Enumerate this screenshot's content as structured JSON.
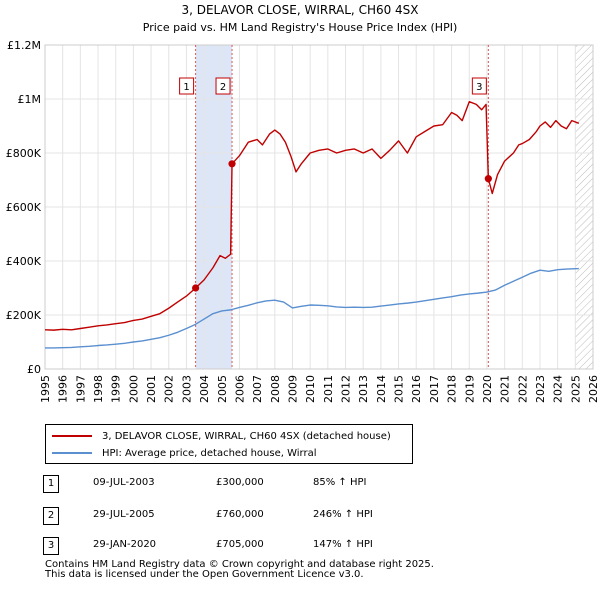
{
  "chart_data": {
    "type": "line",
    "title": "3, DELAVOR CLOSE, WIRRAL, CH60 4SX",
    "subtitle": "Price paid vs. HM Land Registry's House Price Index (HPI)",
    "xlim": [
      1995,
      2026
    ],
    "ylim": [
      0,
      1200000
    ],
    "x_ticks": [
      1995,
      1996,
      1997,
      1998,
      1999,
      2000,
      2001,
      2002,
      2003,
      2004,
      2005,
      2006,
      2007,
      2008,
      2009,
      2010,
      2011,
      2012,
      2013,
      2014,
      2015,
      2016,
      2017,
      2018,
      2019,
      2020,
      2021,
      2022,
      2023,
      2024,
      2025,
      2026
    ],
    "y_ticks": [
      {
        "value": 0,
        "label": "£0"
      },
      {
        "value": 200000,
        "label": "£200K"
      },
      {
        "value": 400000,
        "label": "£400K"
      },
      {
        "value": 600000,
        "label": "£600K"
      },
      {
        "value": 800000,
        "label": "£800K"
      },
      {
        "value": 1000000,
        "label": "£1M"
      },
      {
        "value": 1200000,
        "label": "£1.2M"
      }
    ],
    "grid": true,
    "shaded_regions": [
      {
        "from": 2003.52,
        "to": 2005.58,
        "color": "#dde6f7"
      },
      {
        "from": 2025.0,
        "to": 2026.0,
        "hatched": true
      }
    ],
    "series": [
      {
        "name": "3, DELAVOR CLOSE, WIRRAL, CH60 4SX (detached house)",
        "color": "#c00000",
        "points": [
          [
            1995.0,
            145000
          ],
          [
            1995.5,
            144000
          ],
          [
            1996.0,
            147000
          ],
          [
            1996.5,
            145000
          ],
          [
            1997.0,
            150000
          ],
          [
            1997.5,
            155000
          ],
          [
            1998.0,
            160000
          ],
          [
            1998.5,
            163000
          ],
          [
            1999.0,
            168000
          ],
          [
            1999.5,
            172000
          ],
          [
            2000.0,
            180000
          ],
          [
            2000.5,
            185000
          ],
          [
            2001.0,
            195000
          ],
          [
            2001.5,
            205000
          ],
          [
            2002.0,
            225000
          ],
          [
            2002.5,
            248000
          ],
          [
            2003.0,
            270000
          ],
          [
            2003.52,
            300000
          ],
          [
            2004.0,
            330000
          ],
          [
            2004.5,
            375000
          ],
          [
            2004.9,
            420000
          ],
          [
            2005.2,
            410000
          ],
          [
            2005.5,
            425000
          ],
          [
            2005.58,
            760000
          ],
          [
            2006.0,
            790000
          ],
          [
            2006.5,
            840000
          ],
          [
            2007.0,
            850000
          ],
          [
            2007.3,
            830000
          ],
          [
            2007.7,
            870000
          ],
          [
            2008.0,
            885000
          ],
          [
            2008.3,
            870000
          ],
          [
            2008.6,
            840000
          ],
          [
            2008.9,
            790000
          ],
          [
            2009.2,
            730000
          ],
          [
            2009.5,
            760000
          ],
          [
            2010.0,
            800000
          ],
          [
            2010.5,
            810000
          ],
          [
            2011.0,
            815000
          ],
          [
            2011.5,
            800000
          ],
          [
            2012.0,
            810000
          ],
          [
            2012.5,
            815000
          ],
          [
            2013.0,
            800000
          ],
          [
            2013.5,
            815000
          ],
          [
            2014.0,
            780000
          ],
          [
            2014.5,
            810000
          ],
          [
            2015.0,
            845000
          ],
          [
            2015.5,
            800000
          ],
          [
            2016.0,
            860000
          ],
          [
            2016.5,
            880000
          ],
          [
            2017.0,
            900000
          ],
          [
            2017.5,
            905000
          ],
          [
            2018.0,
            950000
          ],
          [
            2018.3,
            940000
          ],
          [
            2018.6,
            920000
          ],
          [
            2019.0,
            990000
          ],
          [
            2019.4,
            980000
          ],
          [
            2019.7,
            960000
          ],
          [
            2019.95,
            980000
          ],
          [
            2020.08,
            705000
          ],
          [
            2020.3,
            650000
          ],
          [
            2020.6,
            720000
          ],
          [
            2021.0,
            770000
          ],
          [
            2021.5,
            800000
          ],
          [
            2021.8,
            830000
          ],
          [
            2022.0,
            835000
          ],
          [
            2022.4,
            850000
          ],
          [
            2022.8,
            880000
          ],
          [
            2023.0,
            900000
          ],
          [
            2023.3,
            915000
          ],
          [
            2023.6,
            895000
          ],
          [
            2023.9,
            920000
          ],
          [
            2024.2,
            900000
          ],
          [
            2024.5,
            890000
          ],
          [
            2024.8,
            920000
          ],
          [
            2025.2,
            910000
          ]
        ]
      },
      {
        "name": "HPI: Average price, detached house, Wirral",
        "color": "#5a8fd0",
        "points": [
          [
            1995.0,
            78000
          ],
          [
            1995.5,
            78000
          ],
          [
            1996.0,
            79000
          ],
          [
            1996.5,
            80000
          ],
          [
            1997.0,
            82000
          ],
          [
            1997.5,
            84000
          ],
          [
            1998.0,
            87000
          ],
          [
            1998.5,
            89000
          ],
          [
            1999.0,
            92000
          ],
          [
            1999.5,
            95000
          ],
          [
            2000.0,
            100000
          ],
          [
            2000.5,
            104000
          ],
          [
            2001.0,
            110000
          ],
          [
            2001.5,
            116000
          ],
          [
            2002.0,
            125000
          ],
          [
            2002.5,
            136000
          ],
          [
            2003.0,
            150000
          ],
          [
            2003.5,
            165000
          ],
          [
            2004.0,
            185000
          ],
          [
            2004.5,
            205000
          ],
          [
            2005.0,
            215000
          ],
          [
            2005.5,
            219000
          ],
          [
            2006.0,
            228000
          ],
          [
            2006.5,
            236000
          ],
          [
            2007.0,
            245000
          ],
          [
            2007.5,
            252000
          ],
          [
            2008.0,
            255000
          ],
          [
            2008.5,
            248000
          ],
          [
            2009.0,
            226000
          ],
          [
            2009.5,
            232000
          ],
          [
            2010.0,
            237000
          ],
          [
            2010.5,
            236000
          ],
          [
            2011.0,
            234000
          ],
          [
            2011.5,
            230000
          ],
          [
            2012.0,
            228000
          ],
          [
            2012.5,
            229000
          ],
          [
            2013.0,
            228000
          ],
          [
            2013.5,
            229000
          ],
          [
            2014.0,
            233000
          ],
          [
            2014.5,
            237000
          ],
          [
            2015.0,
            241000
          ],
          [
            2015.5,
            244000
          ],
          [
            2016.0,
            248000
          ],
          [
            2016.5,
            253000
          ],
          [
            2017.0,
            258000
          ],
          [
            2017.5,
            263000
          ],
          [
            2018.0,
            268000
          ],
          [
            2018.5,
            274000
          ],
          [
            2019.0,
            278000
          ],
          [
            2019.5,
            281000
          ],
          [
            2020.0,
            285000
          ],
          [
            2020.5,
            293000
          ],
          [
            2021.0,
            310000
          ],
          [
            2021.5,
            325000
          ],
          [
            2022.0,
            340000
          ],
          [
            2022.5,
            355000
          ],
          [
            2023.0,
            366000
          ],
          [
            2023.5,
            362000
          ],
          [
            2024.0,
            368000
          ],
          [
            2024.5,
            370000
          ],
          [
            2025.2,
            372000
          ]
        ]
      }
    ],
    "sale_markers": [
      {
        "label": "1",
        "x": 2003.52,
        "y": 300000
      },
      {
        "label": "2",
        "x": 2005.58,
        "y": 760000
      },
      {
        "label": "3",
        "x": 2020.08,
        "y": 705000
      }
    ]
  },
  "legend": {
    "items": [
      {
        "label": "3, DELAVOR CLOSE, WIRRAL, CH60 4SX (detached house)",
        "color": "#c00000"
      },
      {
        "label": "HPI: Average price, detached house, Wirral",
        "color": "#5a8fd0"
      }
    ]
  },
  "sales": [
    {
      "num": "1",
      "date": "09-JUL-2003",
      "price": "£300,000",
      "hpi": "85% ↑ HPI"
    },
    {
      "num": "2",
      "date": "29-JUL-2005",
      "price": "£760,000",
      "hpi": "246% ↑ HPI"
    },
    {
      "num": "3",
      "date": "29-JAN-2020",
      "price": "£705,000",
      "hpi": "147% ↑ HPI"
    }
  ],
  "footer": {
    "line1": "Contains HM Land Registry data © Crown copyright and database right 2025.",
    "line2": "This data is licensed under the Open Government Licence v3.0."
  }
}
